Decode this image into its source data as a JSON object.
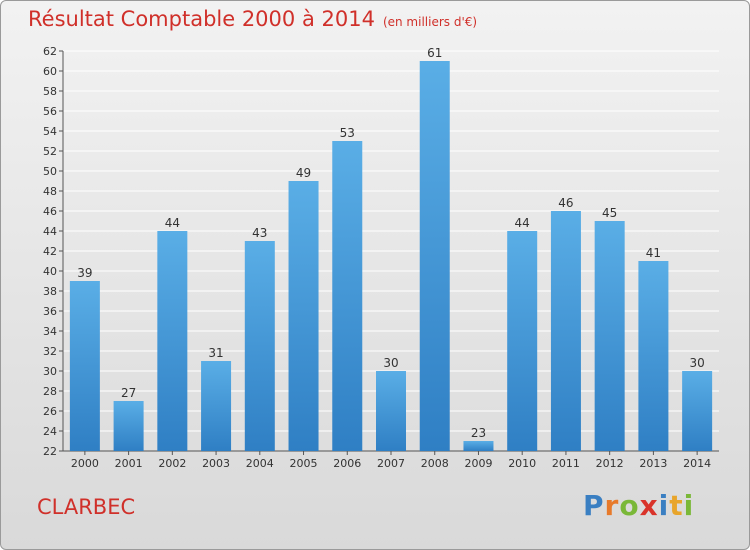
{
  "colors": {
    "title": "#d0302a",
    "bar_top": "#5aaee6",
    "bar_bottom": "#2f7fc4",
    "grid": "#ffffff"
  },
  "logo": {
    "letters": [
      "P",
      "r",
      "o",
      "x",
      "i",
      "t",
      "i"
    ],
    "colors": [
      "#3a7fc2",
      "#e77a2b",
      "#7ab838",
      "#d9332a",
      "#3a7fc2",
      "#e8a52b",
      "#7ab838"
    ]
  },
  "chart_data": {
    "type": "bar",
    "title": "Résultat Comptable 2000 à 2014",
    "unit_label": "(en milliers d'€)",
    "subject": "CLARBEC",
    "xlabel": "",
    "ylabel": "",
    "ylim": [
      22,
      62
    ],
    "ytick_step": 2,
    "grid": true,
    "categories": [
      "2000",
      "2001",
      "2002",
      "2003",
      "2004",
      "2005",
      "2006",
      "2007",
      "2008",
      "2009",
      "2010",
      "2011",
      "2012",
      "2013",
      "2014"
    ],
    "values": [
      39,
      27,
      44,
      31,
      43,
      49,
      53,
      30,
      61,
      23,
      44,
      46,
      45,
      41,
      30
    ]
  }
}
